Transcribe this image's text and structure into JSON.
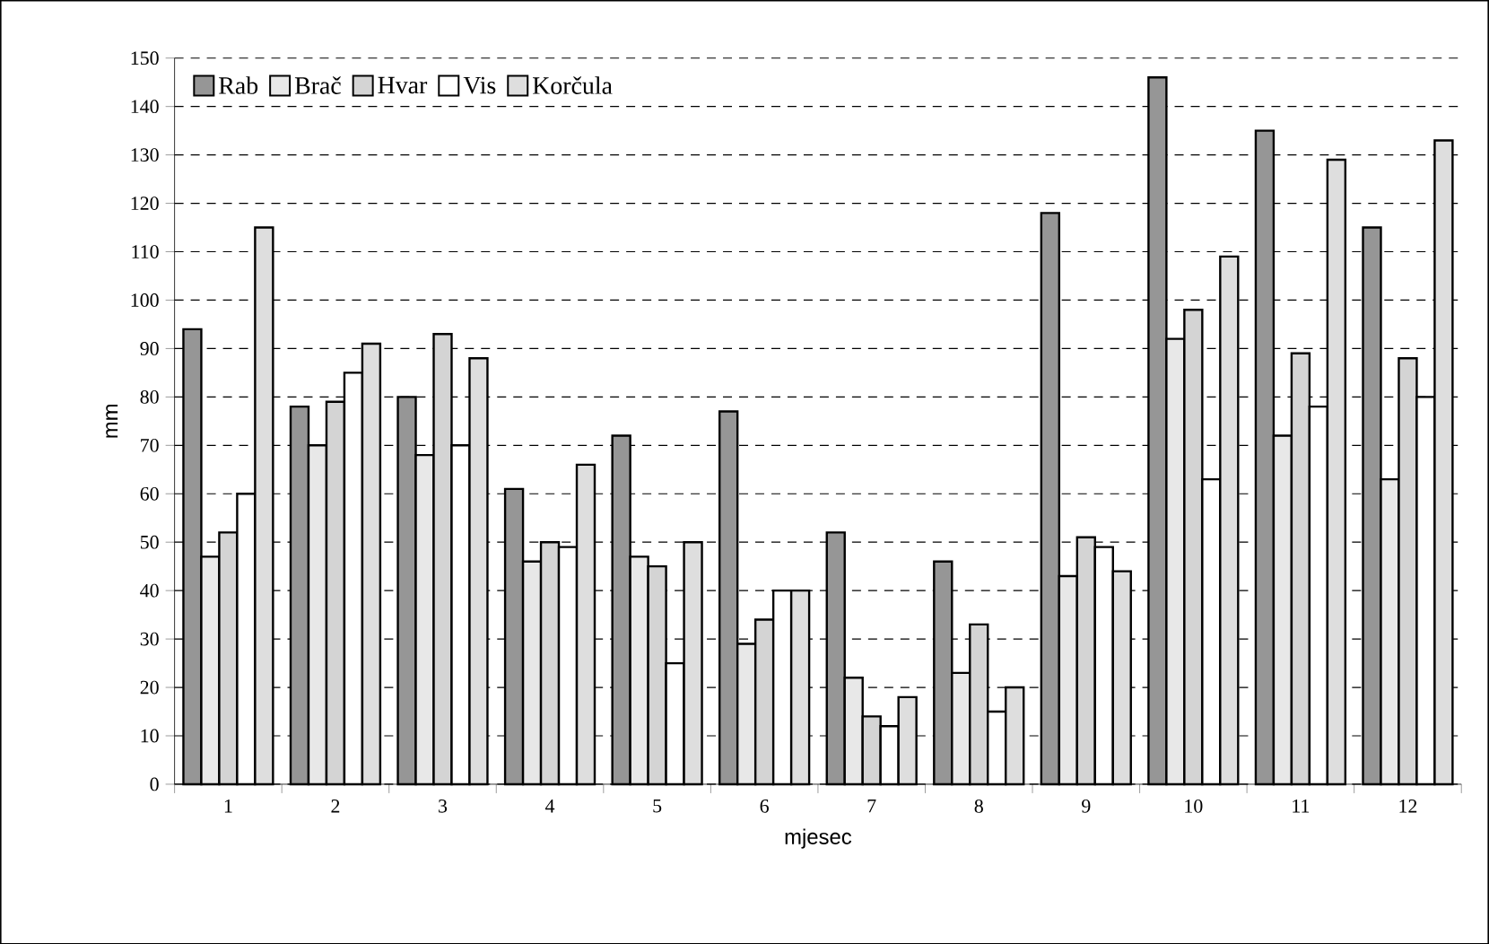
{
  "chart_data": {
    "type": "bar",
    "xlabel": "mjesec",
    "ylabel": "mm",
    "categories": [
      "1",
      "2",
      "3",
      "4",
      "5",
      "6",
      "7",
      "8",
      "9",
      "10",
      "11",
      "12"
    ],
    "series": [
      {
        "name": "Rab",
        "color": "#969696",
        "values": [
          94,
          78,
          80,
          61,
          72,
          77,
          52,
          46,
          118,
          146,
          135,
          115
        ]
      },
      {
        "name": "Brač",
        "color": "#e8e8e8",
        "values": [
          47,
          70,
          68,
          46,
          47,
          29,
          22,
          23,
          43,
          92,
          72,
          63
        ]
      },
      {
        "name": "Hvar",
        "color": "#d4d4d4",
        "values": [
          52,
          79,
          93,
          50,
          45,
          34,
          14,
          33,
          51,
          98,
          89,
          88
        ]
      },
      {
        "name": "Vis",
        "color": "#ffffff",
        "values": [
          60,
          85,
          70,
          49,
          25,
          40,
          12,
          15,
          49,
          63,
          78,
          80
        ]
      },
      {
        "name": "Korčula",
        "color": "#dedede",
        "values": [
          115,
          91,
          88,
          66,
          50,
          40,
          18,
          20,
          44,
          109,
          129,
          133
        ]
      }
    ],
    "ylim": [
      0,
      150
    ],
    "yticks": [
      0,
      10,
      20,
      30,
      40,
      50,
      60,
      70,
      80,
      90,
      100,
      110,
      120,
      130,
      140,
      150
    ],
    "grid": "y",
    "legend": "top left"
  }
}
